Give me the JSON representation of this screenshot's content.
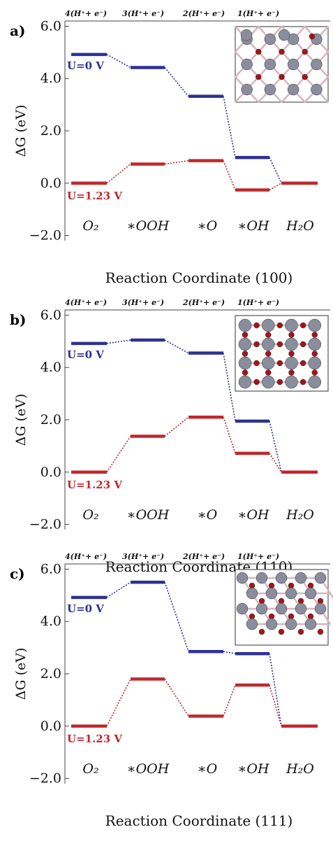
{
  "chart_data": [
    {
      "type": "line",
      "panel_label": "a)",
      "xlabel": "Reaction Coordinate (100)",
      "ylabel": "ΔG (eV)",
      "ylim": [
        -2.2,
        6.2
      ],
      "yticks": [
        "−2.0",
        "0.0",
        "2.0",
        "4.0",
        "6.0"
      ],
      "ytick_values": [
        -2,
        0,
        2,
        4,
        6
      ],
      "step_labels": [
        "4(H⁺+ e⁻)",
        "3(H⁺+ e⁻)",
        "2(H⁺+ e⁻)",
        "1(H⁺+ e⁻)"
      ],
      "categories": [
        "O₂",
        "∗OOH",
        "∗O",
        "∗OH",
        "H₂O"
      ],
      "series": [
        {
          "name": "U=0 V",
          "color": "#2e3192",
          "values": [
            4.92,
            4.42,
            3.32,
            0.98,
            0.0
          ]
        },
        {
          "name": "U=1.23 V",
          "color": "#c0282d",
          "values": [
            0.0,
            0.73,
            0.86,
            -0.26,
            0.0
          ]
        }
      ],
      "inset": "surface-100"
    },
    {
      "type": "line",
      "panel_label": "b)",
      "xlabel": "Reaction Coordinate (110)",
      "ylabel": "ΔG (eV)",
      "ylim": [
        -2.2,
        6.2
      ],
      "yticks": [
        "−2.0",
        "0.0",
        "2.0",
        "4.0",
        "6.0"
      ],
      "ytick_values": [
        -2,
        0,
        2,
        4,
        6
      ],
      "step_labels": [
        "4(H⁺+ e⁻)",
        "3(H⁺+ e⁻)",
        "2(H⁺+ e⁻)",
        "1(H⁺+ e⁻)"
      ],
      "categories": [
        "O₂",
        "∗OOH",
        "∗O",
        "∗OH",
        "H₂O"
      ],
      "series": [
        {
          "name": "U=0 V",
          "color": "#2e3192",
          "values": [
            4.92,
            5.05,
            4.55,
            1.95,
            0.0
          ]
        },
        {
          "name": "U=1.23 V",
          "color": "#c0282d",
          "values": [
            0.0,
            1.37,
            2.1,
            0.72,
            0.0
          ]
        }
      ],
      "inset": "surface-110"
    },
    {
      "type": "line",
      "panel_label": "c)",
      "xlabel": "Reaction Coordinate (111)",
      "ylabel": "ΔG (eV)",
      "ylim": [
        -2.2,
        6.2
      ],
      "yticks": [
        "−2.0",
        "0.0",
        "2.0",
        "4.0",
        "6.0"
      ],
      "ytick_values": [
        -2,
        0,
        2,
        4,
        6
      ],
      "step_labels": [
        "4(H⁺+ e⁻)",
        "3(H⁺+ e⁻)",
        "2(H⁺+ e⁻)",
        "1(H⁺+ e⁻)"
      ],
      "categories": [
        "O₂",
        "∗OOH",
        "∗O",
        "∗OH",
        "H₂O"
      ],
      "series": [
        {
          "name": "U=0 V",
          "color": "#2e3192",
          "values": [
            4.92,
            5.5,
            2.85,
            2.77,
            0.0
          ]
        },
        {
          "name": "U=1.23 V",
          "color": "#c0282d",
          "values": [
            0.0,
            1.8,
            0.38,
            1.57,
            0.0
          ]
        }
      ],
      "inset": "surface-111"
    }
  ]
}
